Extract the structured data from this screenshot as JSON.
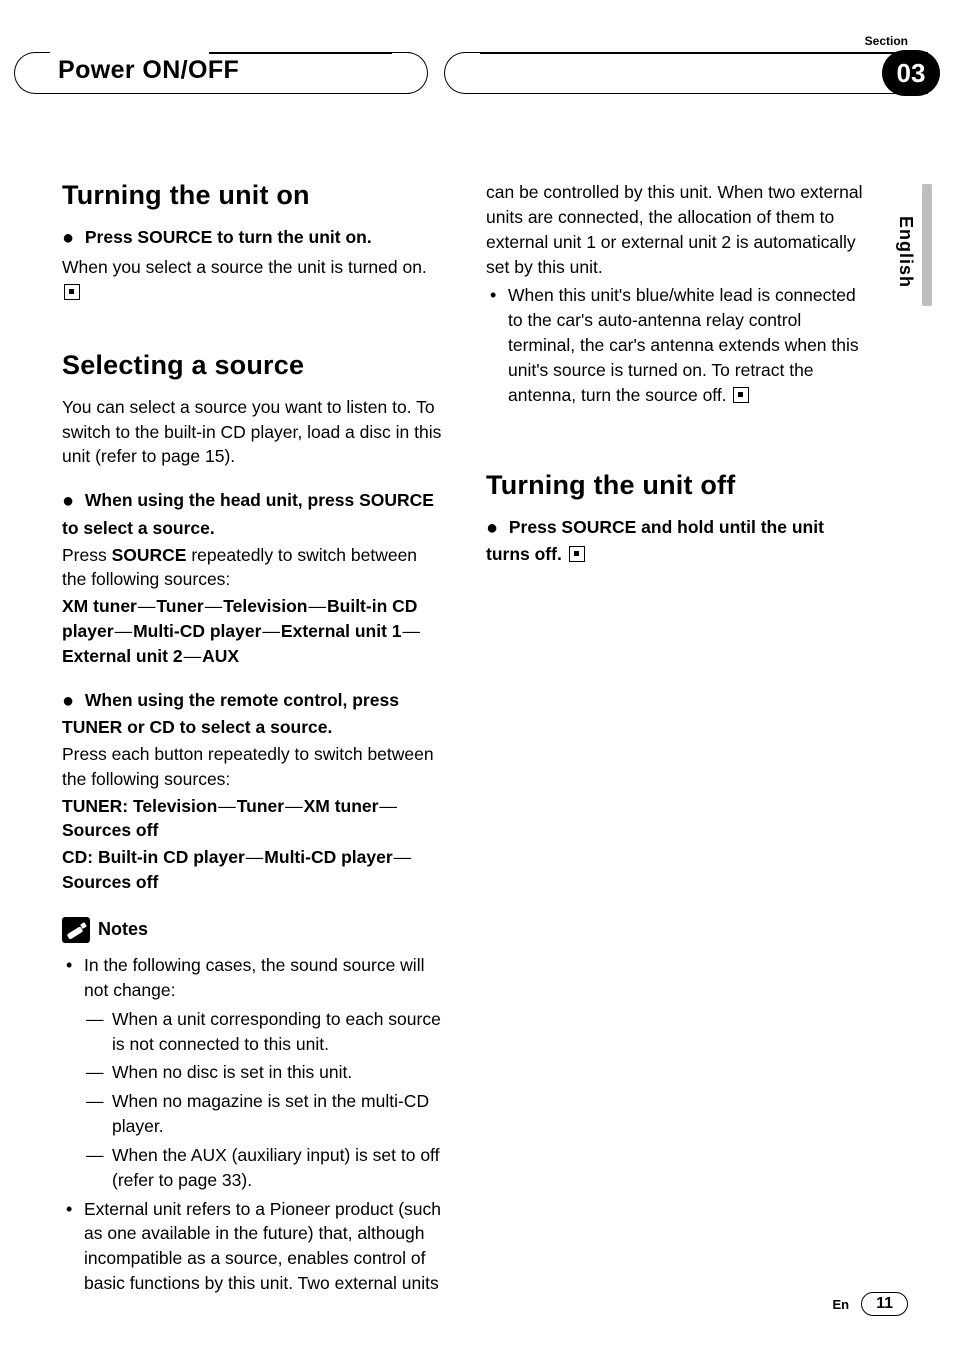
{
  "header": {
    "section_label": "Section",
    "title": "Power ON/OFF",
    "section_number": "03"
  },
  "language_tab": "English",
  "col1": {
    "h_turn_on": "Turning the unit on",
    "turn_on_lead": "Press SOURCE to turn the unit on.",
    "turn_on_body": "When you select a source the unit is turned on.",
    "h_select": "Selecting a source",
    "select_intro": "You can select a source you want to listen to. To switch to the built-in CD player, load a disc in this unit (refer to page 15).",
    "head_unit_lead": "When using the head unit, press SOURCE to select a source.",
    "head_unit_body_pre": "Press ",
    "head_unit_body_bold": "SOURCE",
    "head_unit_body_post": " repeatedly to switch between the following sources:",
    "chain_head_unit": [
      "XM tuner",
      "Tuner",
      "Television",
      "Built-in CD player",
      "Multi-CD player",
      "External unit 1",
      "External unit 2",
      "AUX"
    ],
    "remote_lead": "When using the remote control, press TUNER or CD to select a source.",
    "remote_body": "Press each button repeatedly to switch between the following sources:",
    "tuner_label": "TUNER",
    "chain_tuner": [
      "Television",
      "Tuner",
      "XM tuner",
      "Sources off"
    ],
    "cd_label": "CD",
    "chain_cd": [
      "Built-in CD player",
      "Multi-CD player",
      "Sources off"
    ],
    "notes_title": "Notes",
    "note1": "In the following cases, the sound source will not change:",
    "note1_subs": [
      "When a unit corresponding to each source is not connected to this unit.",
      "When no disc is set in this unit.",
      "When no magazine is set in the multi-CD player.",
      "When the AUX (auxiliary input) is set to off (refer to page 33)."
    ],
    "note2": "External unit refers to a Pioneer product (such as one available in the future) that, although incompatible as a source, enables control of basic functions by this unit. Two external units"
  },
  "col2": {
    "cont1": "can be controlled by this unit. When two external units are connected, the allocation of them to external unit 1 or external unit 2 is automatically set by this unit.",
    "cont2": "When this unit's blue/white lead is connected to the car's auto-antenna relay control terminal, the car's antenna extends when this unit's source is turned on. To retract the antenna, turn the source off.",
    "h_turn_off": "Turning the unit off",
    "turn_off_lead": "Press SOURCE and hold until the unit turns off."
  },
  "footer": {
    "lang_code": "En",
    "page": "11"
  },
  "colors": {
    "text": "#000000",
    "background": "#ffffff",
    "tab_gray": "#bfbfbf"
  }
}
